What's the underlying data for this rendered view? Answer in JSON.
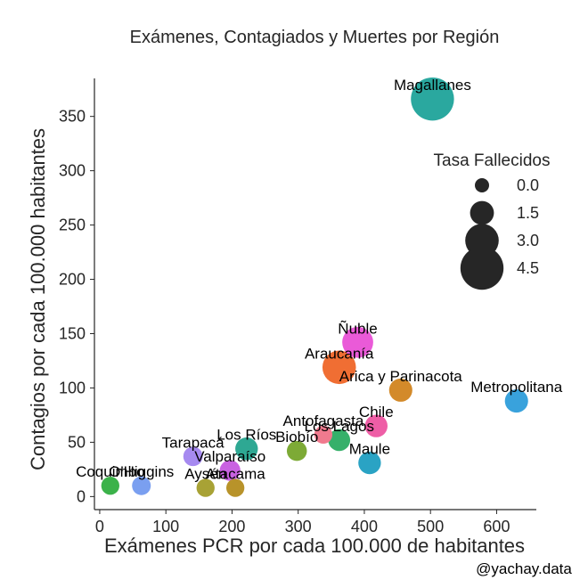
{
  "chart_data": {
    "type": "scatter",
    "title": "Exámenes, Contagiados y Muertes por Región",
    "xlabel": "Exámenes PCR por cada 100.000 de habitantes",
    "ylabel": "Contagios por cada 100.000 habitantes",
    "xlim": [
      -8,
      660
    ],
    "ylim": [
      -12,
      385
    ],
    "xticks": [
      0,
      100,
      200,
      300,
      400,
      500,
      600
    ],
    "yticks": [
      0,
      50,
      100,
      150,
      200,
      250,
      300,
      350
    ],
    "grid": false,
    "size_legend": {
      "title": "Tasa Fallecidos",
      "placement": "right",
      "entries": [
        {
          "label": "0.0",
          "value": 0.0
        },
        {
          "label": "1.5",
          "value": 1.5
        },
        {
          "label": "3.0",
          "value": 3.0
        },
        {
          "label": "4.5",
          "value": 4.5
        }
      ]
    },
    "points": [
      {
        "name": "Magallanes",
        "x": 503,
        "y": 366,
        "size": 4.5,
        "color": "#2aa89f"
      },
      {
        "name": "Ñuble",
        "x": 390,
        "y": 142,
        "size": 2.6,
        "color": "#ea5ad8"
      },
      {
        "name": "Araucanía",
        "x": 362,
        "y": 119,
        "size": 3.0,
        "color": "#f06e33"
      },
      {
        "name": "Arica y Parinacota",
        "x": 455,
        "y": 98,
        "size": 1.4,
        "color": "#d38a2a"
      },
      {
        "name": "Metropolitana",
        "x": 630,
        "y": 88,
        "size": 1.4,
        "color": "#39a2dc"
      },
      {
        "name": "Antofagasta",
        "x": 338,
        "y": 57,
        "size": 0.6,
        "color": "#f07a8e"
      },
      {
        "name": "Chile",
        "x": 418,
        "y": 65,
        "size": 1.3,
        "color": "#ee5ea6"
      },
      {
        "name": "Los Lagos",
        "x": 362,
        "y": 52,
        "size": 1.2,
        "color": "#36b06a"
      },
      {
        "name": "Los Ríos",
        "x": 222,
        "y": 44,
        "size": 1.3,
        "color": "#2ea893"
      },
      {
        "name": "Biobío",
        "x": 298,
        "y": 42,
        "size": 0.9,
        "color": "#7daa36"
      },
      {
        "name": "Maule",
        "x": 408,
        "y": 31,
        "size": 1.3,
        "color": "#2aa3c4"
      },
      {
        "name": "Tarapacá",
        "x": 141,
        "y": 37,
        "size": 0.8,
        "color": "#a68af0"
      },
      {
        "name": "Valparaíso",
        "x": 197,
        "y": 24,
        "size": 1.0,
        "color": "#c962e2"
      },
      {
        "name": "Atacama",
        "x": 205,
        "y": 8,
        "size": 0.6,
        "color": "#b8932a"
      },
      {
        "name": "Aysén",
        "x": 160,
        "y": 8,
        "size": 0.6,
        "color": "#a8a235"
      },
      {
        "name": "Coquimbo",
        "x": 16,
        "y": 10,
        "size": 0.6,
        "color": "#3bb24a"
      },
      {
        "name": "O'Higgins",
        "x": 63,
        "y": 10,
        "size": 0.7,
        "color": "#7a9ff0"
      }
    ]
  },
  "credit": "@yachay.data"
}
